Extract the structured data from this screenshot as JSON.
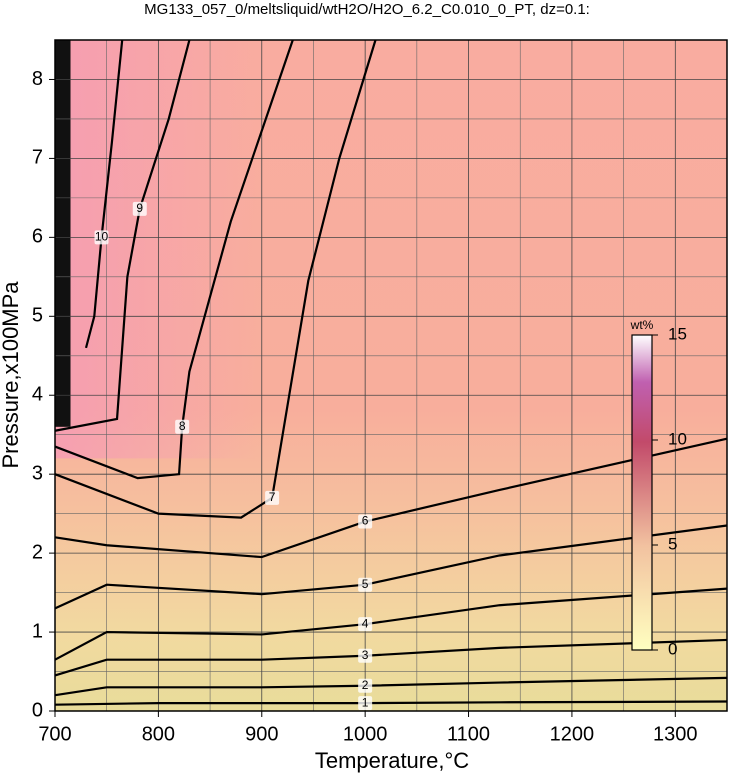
{
  "chart_data": {
    "type": "contour",
    "title": "MG133_057_0/meltsliquid/wtH2O/H2O_6.2_C0.010_0_PT, dz=0.1:",
    "x_label": "Temperature,°C",
    "y_label": "Pressure,x100MPa",
    "xlim": [
      700,
      1350
    ],
    "ylim": [
      0,
      8.5
    ],
    "xticks": [
      700,
      800,
      900,
      1000,
      1100,
      1200,
      1300
    ],
    "yticks": [
      0,
      1,
      2,
      3,
      4,
      5,
      6,
      7,
      8
    ],
    "grid": true,
    "contours": [
      {
        "level": 1,
        "x": [
          700,
          800,
          900,
          1000,
          1130,
          1350
        ],
        "y": [
          0.08,
          0.1,
          0.1,
          0.1,
          0.11,
          0.12
        ]
      },
      {
        "level": 2,
        "x": [
          700,
          750,
          900,
          1000,
          1130,
          1350
        ],
        "y": [
          0.2,
          0.3,
          0.3,
          0.32,
          0.36,
          0.42
        ]
      },
      {
        "level": 3,
        "x": [
          700,
          750,
          900,
          1000,
          1130,
          1350
        ],
        "y": [
          0.45,
          0.65,
          0.65,
          0.7,
          0.8,
          0.9
        ]
      },
      {
        "level": 4,
        "x": [
          700,
          750,
          900,
          1000,
          1130,
          1350
        ],
        "y": [
          0.65,
          1.0,
          0.97,
          1.1,
          1.34,
          1.55
        ]
      },
      {
        "level": 5,
        "x": [
          700,
          750,
          900,
          1000,
          1130,
          1350
        ],
        "y": [
          1.3,
          1.6,
          1.48,
          1.6,
          1.97,
          2.35
        ]
      },
      {
        "level": 6,
        "x": [
          700,
          750,
          900,
          1000,
          1130,
          1350
        ],
        "y": [
          2.2,
          2.1,
          1.95,
          2.4,
          2.8,
          3.45
        ]
      },
      {
        "level": 7,
        "x": [
          700,
          800,
          880,
          910,
          945,
          975,
          1010
        ],
        "y": [
          3.0,
          2.5,
          2.45,
          2.7,
          5.45,
          7.0,
          8.5
        ]
      },
      {
        "level": 8,
        "x": [
          700,
          780,
          820,
          823,
          830,
          870,
          930
        ],
        "y": [
          3.35,
          2.95,
          3.0,
          3.6,
          4.3,
          6.2,
          8.5
        ]
      },
      {
        "level": 9,
        "x": [
          700,
          760,
          770,
          782,
          810,
          830
        ],
        "y": [
          3.55,
          3.7,
          5.5,
          6.36,
          7.5,
          8.5
        ]
      },
      {
        "level": 10,
        "x": [
          730,
          738,
          745,
          755,
          765
        ],
        "y": [
          4.6,
          5.0,
          6.0,
          7.2,
          8.5
        ]
      }
    ],
    "colorbar": {
      "label": "wt%",
      "lim": [
        0,
        15
      ],
      "ticks": [
        0,
        5,
        10,
        15
      ]
    }
  }
}
